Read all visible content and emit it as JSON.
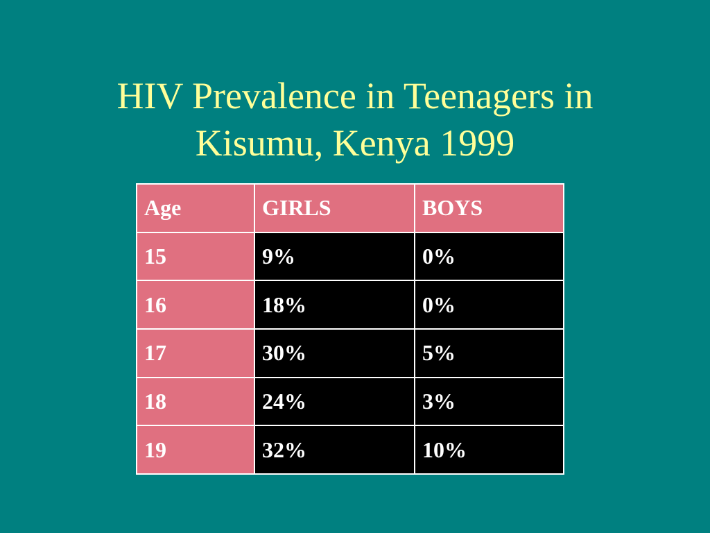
{
  "slide": {
    "title_lines": [
      "HIV Prevalence in Teenagers in",
      "Kisumu, Kenya  1999"
    ]
  },
  "table": {
    "headers": [
      "Age",
      "GIRLS",
      "BOYS"
    ],
    "rows": [
      [
        "15",
        "9%",
        "0%"
      ],
      [
        "16",
        "18%",
        "0%"
      ],
      [
        "17",
        "30%",
        "5%"
      ],
      [
        "18",
        "24%",
        "3%"
      ],
      [
        "19",
        "32%",
        "10%"
      ]
    ]
  },
  "colors": {
    "background": "#008080",
    "title": "#FFFF99",
    "header_fill": "#E07080",
    "body_fill": "#000000",
    "text": "#ffffff"
  }
}
